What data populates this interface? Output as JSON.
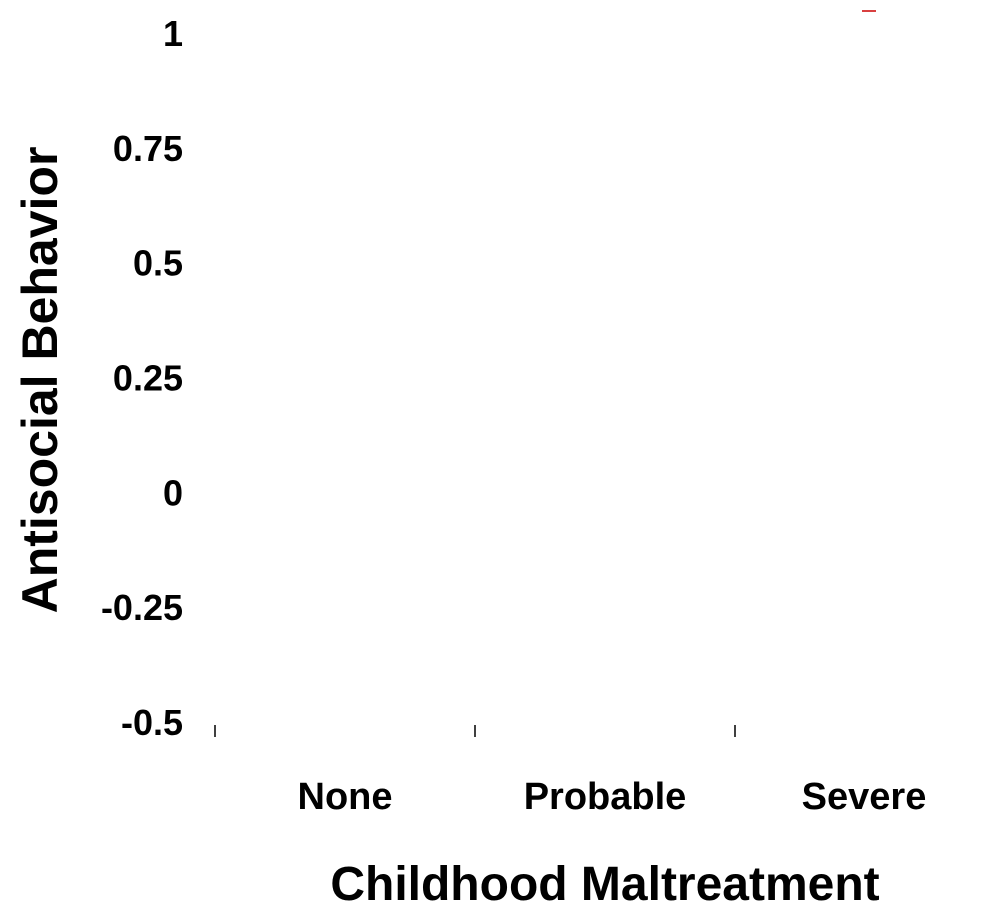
{
  "chart_data": {
    "type": "line",
    "categories": [
      "None",
      "Probable",
      "Severe"
    ],
    "xlabel": "Childhood Maltreatment",
    "ylabel": "Antisocial Behavior",
    "ylim": [
      -0.5,
      1
    ],
    "yticks": [
      "-0.5",
      "-0.25",
      "0",
      "0.25",
      "0.5",
      "0.75",
      "1"
    ],
    "series": [],
    "grid": false,
    "legend": "none",
    "colors": {
      "text": "#000000",
      "axis": "#000000",
      "mark": "#cc0000"
    }
  }
}
